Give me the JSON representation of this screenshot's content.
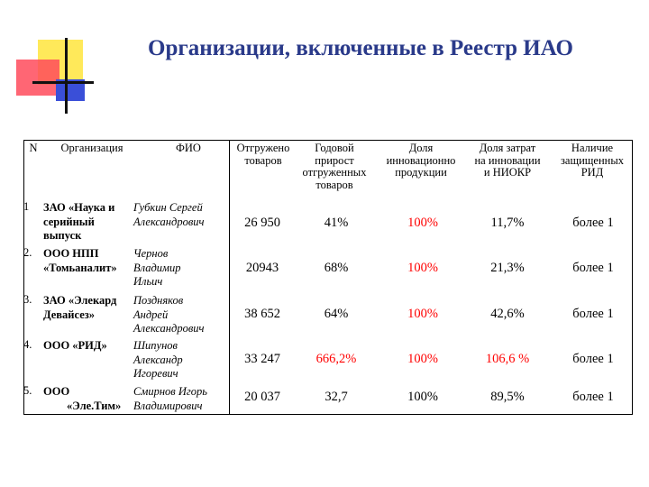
{
  "title": "Организации,  включенные в Реестр ИАО",
  "table": {
    "headers": {
      "num": "N",
      "org": "Организация",
      "fio": "ФИО",
      "shipped": [
        "Отгружено",
        "товаров"
      ],
      "growth": [
        "Годовой",
        "прирост",
        "отгруженных",
        "товаров"
      ],
      "share": [
        "Доля",
        "инновационно",
        "продукции"
      ],
      "costs": [
        "Доля затрат",
        "на инновации",
        "и НИОКР"
      ],
      "rid": [
        "Наличие",
        "защищенных",
        "РИД"
      ]
    },
    "rows": [
      {
        "num": "1",
        "org": [
          "ЗАО «Наука и",
          "серийный",
          "выпуск"
        ],
        "fio": [
          "Губкин Сергей",
          "Александрович"
        ],
        "shipped": "26 950",
        "growth": "41%",
        "share": "100%",
        "costs": "11,7%",
        "rid": "более 1"
      },
      {
        "num": "2.",
        "org": [
          "ООО НПП",
          "«Томьаналит»"
        ],
        "fio": [
          "Чернов",
          "Владимир",
          "Ильич"
        ],
        "shipped": "20943",
        "growth": "68%",
        "share": "100%",
        "costs": "21,3%",
        "rid": "более 1"
      },
      {
        "num": "3.",
        "org": [
          "ЗАО «Элекард",
          "Девайсез»"
        ],
        "fio": [
          "Поздняков",
          "Андрей",
          "Александрович"
        ],
        "shipped": "38 652",
        "growth": "64%",
        "share": "100%",
        "costs": "42,6%",
        "rid": "более 1"
      },
      {
        "num": "4.",
        "org": [
          "ООО «РИД»"
        ],
        "fio": [
          "Шипунов",
          "Александр",
          "Игоревич"
        ],
        "shipped": "33 247",
        "growth": "666,2%",
        "share": "100%",
        "costs": "106,6 %",
        "rid": "более 1"
      },
      {
        "num": "5.",
        "org": [
          "ООО",
          "«Эле.Тим»"
        ],
        "fio": [
          "Смирнов Игорь",
          "Владимирович"
        ],
        "shipped": "20 037",
        "growth": "32,7",
        "share": "100%",
        "costs": "89,5%",
        "rid": "более 1"
      }
    ]
  },
  "colors": {
    "title": "#2a3a8a",
    "highlight": "#ff0000",
    "deco_yellow": "#ffe95a",
    "deco_red": "#ff4b5c",
    "deco_blue": "#3a4fd8"
  }
}
